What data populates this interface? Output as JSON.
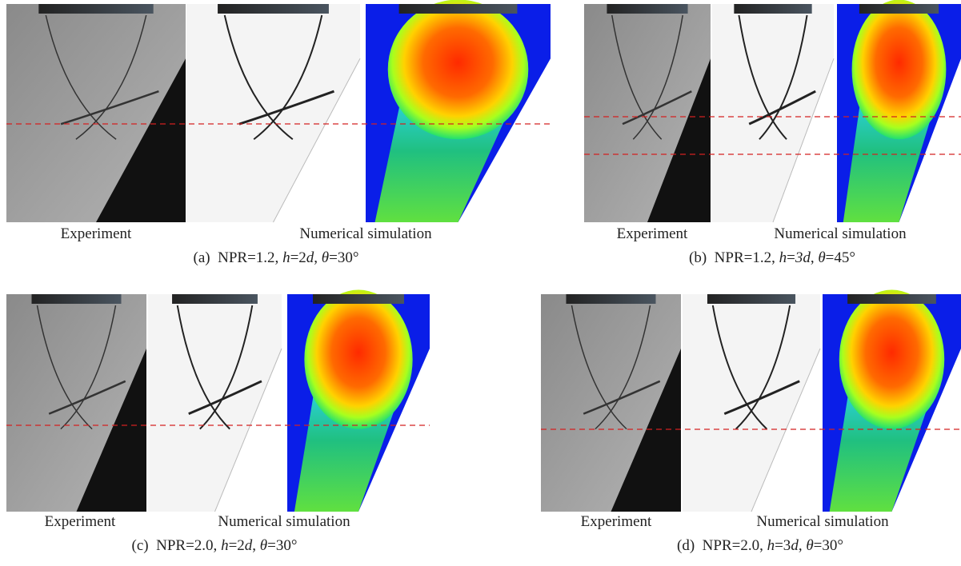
{
  "panels": [
    {
      "experiment_label": "Experiment",
      "simulation_label": "Numerical simulation",
      "caption": [
        "(a)  NPR=1.2, ",
        "h",
        "=2",
        "d",
        ", ",
        "θ",
        "=30°"
      ]
    },
    {
      "experiment_label": "Experiment",
      "simulation_label": "Numerical simulation",
      "caption": [
        "(b)  NPR=1.2, ",
        "h",
        "=",
        "3d",
        ", ",
        "θ",
        "=45°"
      ]
    },
    {
      "experiment_label": "Experiment",
      "simulation_label": "Numerical simulation",
      "caption": [
        "(c)  NPR=2.0, ",
        "h",
        "=2",
        "d",
        ", ",
        "θ",
        "=30°"
      ]
    },
    {
      "experiment_label": "Experiment",
      "simulation_label": "Numerical simulation",
      "caption": [
        "(d)  NPR=2.0, ",
        "h",
        "=3",
        "d",
        ", ",
        "θ",
        "=30°"
      ]
    }
  ]
}
